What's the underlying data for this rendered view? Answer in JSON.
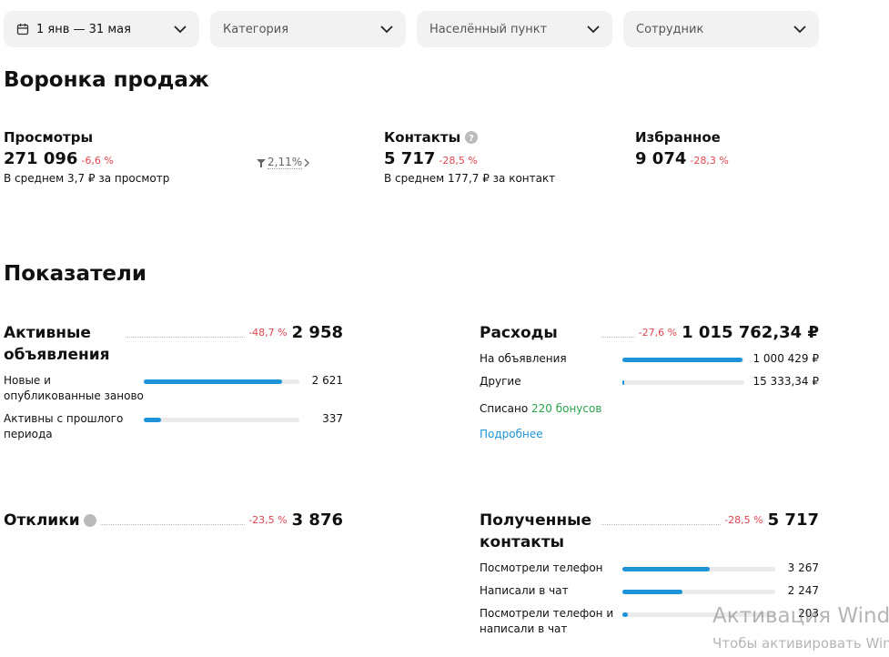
{
  "filters": [
    {
      "label": "1 янв — 31 мая"
    },
    {
      "label": "Категория"
    },
    {
      "label": "Населённый пункт"
    },
    {
      "label": "Сотрудник"
    }
  ],
  "funnel": {
    "title": "Воронка продаж",
    "conversion": "2,11%",
    "items": [
      {
        "label": "Просмотры",
        "value": "271 096",
        "change": "-6,6 %",
        "note": "В среднем 3,7 ₽ за просмотр"
      },
      {
        "label": "Контакты",
        "value": "5 717",
        "change": "-28,5 %",
        "note": "В среднем 177,7 ₽ за контакт"
      },
      {
        "label": "Избранное",
        "value": "9 074",
        "change": "-28,3 %"
      }
    ]
  },
  "metrics": {
    "title": "Показатели",
    "active": {
      "label": "Активные объявления",
      "change": "-48,7 %",
      "value": "2 958",
      "rows": [
        {
          "label": "Новые и опубликованные заново",
          "value": "2 621"
        },
        {
          "label": "Активны с прошлого периода",
          "value": "337"
        }
      ]
    },
    "expenses": {
      "label": "Расходы",
      "change": "-27,6 %",
      "value": "1 015 762,34 ₽",
      "rows": [
        {
          "label": "На объявления",
          "value": "1 000 429 ₽"
        },
        {
          "label": "Другие",
          "value": "15 333,34 ₽"
        }
      ],
      "bonus_text": "Списано",
      "bonus": "220 бонусов",
      "link": "Подробнее"
    },
    "responses": {
      "label": "Отклики",
      "change": "-23,5 %",
      "value": "3 876"
    },
    "contacts": {
      "label": "Полученные контакты",
      "change": "-28,5 %",
      "value": "5 717",
      "rows": [
        {
          "label": "Посмотрели телефон",
          "value": "3 267"
        },
        {
          "label": "Написали в чат",
          "value": "2 247"
        },
        {
          "label": "Посмотрели телефон и написали в чат",
          "value": "203"
        }
      ]
    }
  },
  "watermark": {
    "title": "Активация Windows",
    "subtitle": "Чтобы активировать Windows"
  }
}
